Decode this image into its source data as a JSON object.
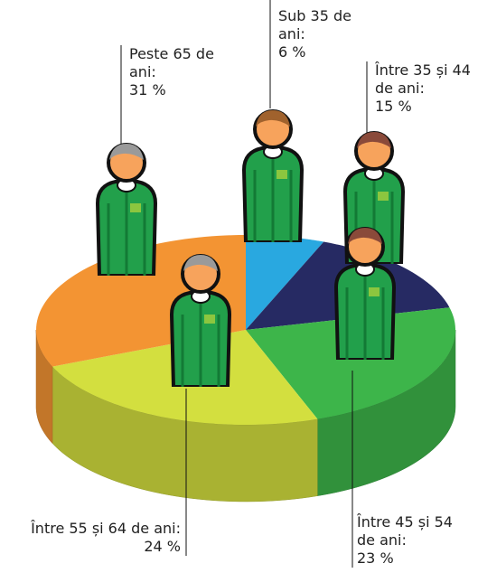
{
  "chart_data": {
    "type": "pie",
    "categories": [
      "Sub 35 de ani:",
      "Între 35 și 44 de ani:",
      "Între 45 și 54 de ani:",
      "Între 55 și 64 de ani:",
      "Peste 65 de ani:"
    ],
    "values": [
      6,
      15,
      23,
      24,
      31
    ],
    "value_labels": [
      "6 %",
      "15 %",
      "23 %",
      "24 %",
      "31 %"
    ],
    "colors": [
      "#29a8e0",
      "#262a63",
      "#3db54a",
      "#d3df3f",
      "#f39433"
    ]
  }
}
